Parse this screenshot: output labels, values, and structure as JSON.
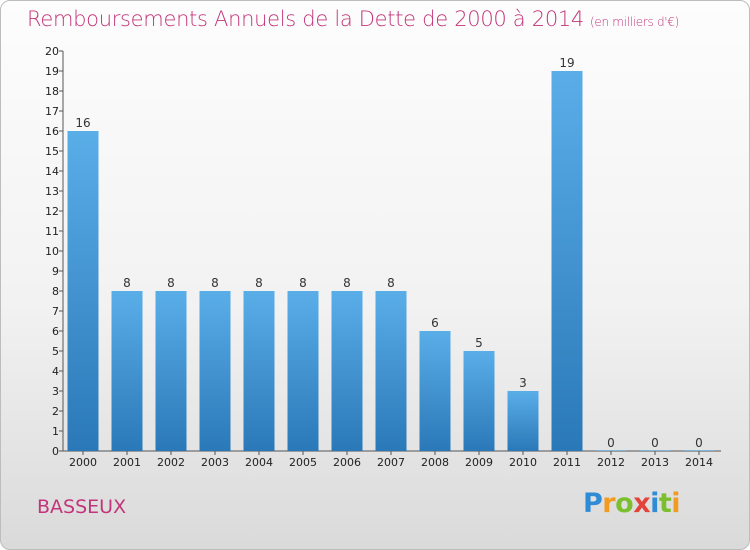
{
  "header": {
    "title": "Remboursements Annuels de la Dette de 2000 à 2014",
    "subtitle": "(en milliers d'€)"
  },
  "footer": {
    "town": "BASSEUX",
    "logo": "Proxiti"
  },
  "colors": {
    "title": "#c2357a",
    "bar_top": "#5aaee8",
    "bar_bottom": "#2a78b8"
  },
  "chart_data": {
    "type": "bar",
    "title": "Remboursements Annuels de la Dette de 2000 à 2014",
    "subtitle": "(en milliers d'€)",
    "xlabel": "",
    "ylabel": "",
    "categories": [
      "2000",
      "2001",
      "2002",
      "2003",
      "2004",
      "2005",
      "2006",
      "2007",
      "2008",
      "2009",
      "2010",
      "2011",
      "2012",
      "2013",
      "2014"
    ],
    "values": [
      16,
      8,
      8,
      8,
      8,
      8,
      8,
      8,
      6,
      5,
      3,
      19,
      0,
      0,
      0
    ],
    "ylim": [
      0,
      20
    ],
    "yticks": [
      0,
      1,
      2,
      3,
      4,
      5,
      6,
      7,
      8,
      9,
      10,
      11,
      12,
      13,
      14,
      15,
      16,
      17,
      18,
      19,
      20
    ],
    "grid": false,
    "data_labels": true
  }
}
